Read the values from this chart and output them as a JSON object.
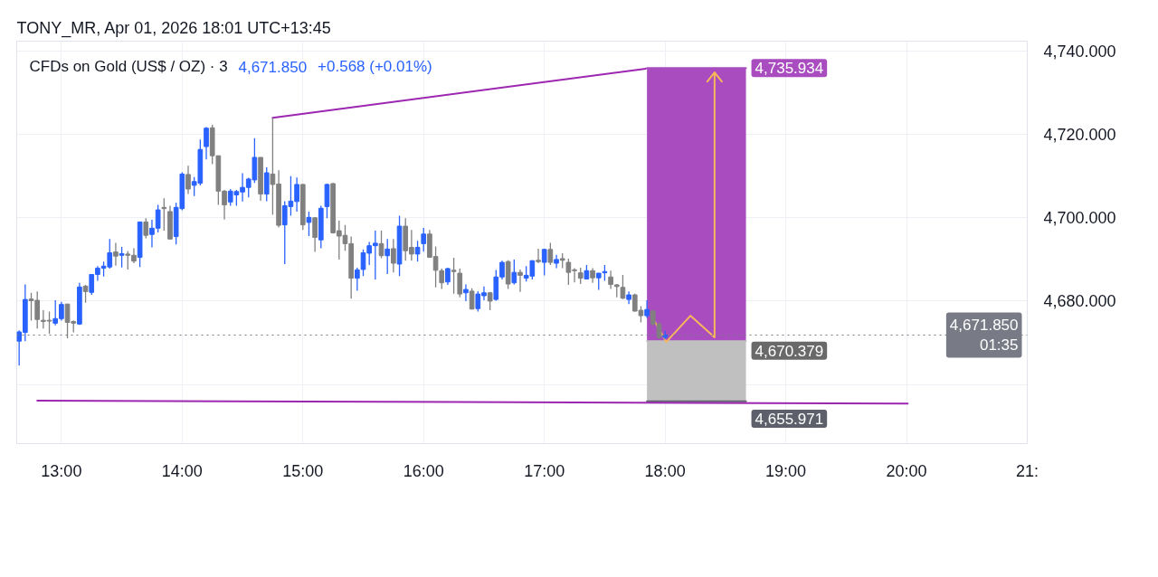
{
  "chart_data": {
    "type": "candlestick",
    "title": "TONY_MR, Apr 01, 2026 18:01 UTC+13:45",
    "subtitle": "CFDs on Gold (US$ / OZ) · 3",
    "x": [
      12.65,
      12.7,
      12.75,
      12.8,
      12.85,
      12.9,
      12.95,
      13,
      13.05,
      13.1,
      13.15,
      13.2,
      13.25,
      13.3,
      13.35,
      13.4,
      13.45,
      13.5,
      13.55,
      13.6,
      13.65,
      13.7,
      13.75,
      13.8,
      13.85,
      13.9,
      13.95,
      14,
      14.05,
      14.1,
      14.15,
      14.2,
      14.25,
      14.3,
      14.35,
      14.4,
      14.45,
      14.5,
      14.55,
      14.6,
      14.65,
      14.7,
      14.75,
      14.8,
      14.85,
      14.9,
      14.95,
      15,
      15.05,
      15.1,
      15.15,
      15.2,
      15.25,
      15.3,
      15.35,
      15.4,
      15.45,
      15.5,
      15.55,
      15.6,
      15.65,
      15.7,
      15.75,
      15.8,
      15.85,
      15.9,
      15.95,
      16,
      16.05,
      16.1,
      16.15,
      16.2,
      16.25,
      16.3,
      16.35,
      16.4,
      16.45,
      16.5,
      16.55,
      16.6,
      16.65,
      16.7,
      16.75,
      16.8,
      16.85,
      16.9,
      16.95,
      17,
      17.05,
      17.1,
      17.15,
      17.2,
      17.25,
      17.3,
      17.35,
      17.4,
      17.45,
      17.5,
      17.55,
      17.6,
      17.65,
      17.7,
      17.75,
      17.8,
      17.85,
      17.9,
      17.95,
      18
    ],
    "ohlc": [
      [
        4670.4,
        4673.0,
        4664.5,
        4672.6
      ],
      [
        4672.5,
        4684.0,
        4670.4,
        4680.4
      ],
      [
        4680.5,
        4682.0,
        4675.3,
        4680.1
      ],
      [
        4680.2,
        4682.3,
        4673.4,
        4675.6
      ],
      [
        4675.4,
        4677.8,
        4673.4,
        4675.1
      ],
      [
        4675.4,
        4677.5,
        4672.2,
        4675.2
      ],
      [
        4674.7,
        4680.2,
        4674.2,
        4675.8
      ],
      [
        4675.8,
        4679.8,
        4675.3,
        4679.2
      ],
      [
        4679.3,
        4679.3,
        4671.1,
        4674.9
      ],
      [
        4675.1,
        4675.4,
        4672.5,
        4674.7
      ],
      [
        4674.5,
        4684.4,
        4674.3,
        4683.4
      ],
      [
        4683.6,
        4683.9,
        4679.6,
        4682.3
      ],
      [
        4682.1,
        4686.5,
        4681.5,
        4686.4
      ],
      [
        4686.4,
        4688.4,
        4684.9,
        4687.9
      ],
      [
        4687.9,
        4689.5,
        4685.9,
        4688.4
      ],
      [
        4688.2,
        4694.9,
        4687.8,
        4691.6
      ],
      [
        4691.8,
        4694.0,
        4688.5,
        4690.8
      ],
      [
        4691.0,
        4693.0,
        4688.1,
        4691.4
      ],
      [
        4691.3,
        4692.0,
        4687.6,
        4691.0
      ],
      [
        4691.0,
        4692.7,
        4689.1,
        4689.6
      ],
      [
        4690.5,
        4699.0,
        4688.2,
        4699.0
      ],
      [
        4699.0,
        4699.9,
        4695.1,
        4695.8
      ],
      [
        4696.0,
        4699.5,
        4692.9,
        4697.5
      ],
      [
        4697.5,
        4703.1,
        4696.5,
        4701.9
      ],
      [
        4702.5,
        4704.7,
        4696.9,
        4702.2
      ],
      [
        4701.5,
        4702.9,
        4694.9,
        4694.9
      ],
      [
        4695.5,
        4703.6,
        4693.6,
        4702.5
      ],
      [
        4702.2,
        4710.9,
        4701.8,
        4710.5
      ],
      [
        4710.4,
        4712.5,
        4705.7,
        4706.9
      ],
      [
        4707.8,
        4709.8,
        4705.2,
        4708.7
      ],
      [
        4708.3,
        4718.8,
        4707.8,
        4716.4
      ],
      [
        4717.1,
        4721.8,
        4714.0,
        4721.5
      ],
      [
        4721.6,
        4722.3,
        4712.9,
        4714.9
      ],
      [
        4714.9,
        4714.9,
        4703.1,
        4706.4
      ],
      [
        4706.4,
        4706.7,
        4699.6,
        4703.1
      ],
      [
        4703.8,
        4706.9,
        4702.9,
        4706.4
      ],
      [
        4705.5,
        4706.7,
        4702.9,
        4706.3
      ],
      [
        4706.2,
        4710.7,
        4703.9,
        4707.3
      ],
      [
        4707.3,
        4709.6,
        4704.9,
        4709.3
      ],
      [
        4709.1,
        4719.1,
        4708.4,
        4714.5
      ],
      [
        4714.5,
        4714.5,
        4704.1,
        4705.7
      ],
      [
        4705.7,
        4712.1,
        4704.0,
        4710.8
      ],
      [
        4710.5,
        4724.0,
        4700.7,
        4708.0
      ],
      [
        4708.1,
        4711.4,
        4697.7,
        4698.2
      ],
      [
        4698.3,
        4704.0,
        4688.9,
        4702.9
      ],
      [
        4702.7,
        4710.0,
        4700.5,
        4704.0
      ],
      [
        4703.9,
        4709.7,
        4701.5,
        4708.0
      ],
      [
        4708.0,
        4708.1,
        4697.1,
        4698.3
      ],
      [
        4698.9,
        4701.5,
        4695.6,
        4700.1
      ],
      [
        4700.0,
        4700.1,
        4691.8,
        4695.3
      ],
      [
        4694.7,
        4702.9,
        4692.7,
        4702.3
      ],
      [
        4702.7,
        4708.2,
        4699.9,
        4708.0
      ],
      [
        4708.2,
        4708.4,
        4696.2,
        4696.4
      ],
      [
        4696.9,
        4699.3,
        4690.0,
        4695.6
      ],
      [
        4695.8,
        4698.3,
        4692.1,
        4693.8
      ],
      [
        4693.8,
        4695.5,
        4680.6,
        4685.5
      ],
      [
        4685.5,
        4688.0,
        4682.5,
        4687.5
      ],
      [
        4687.6,
        4692.4,
        4686.0,
        4691.6
      ],
      [
        4691.5,
        4694.2,
        4688.7,
        4693.3
      ],
      [
        4693.3,
        4696.9,
        4685.2,
        4693.9
      ],
      [
        4693.8,
        4696.9,
        4690.3,
        4690.9
      ],
      [
        4690.9,
        4694.9,
        4686.5,
        4692.5
      ],
      [
        4692.6,
        4694.9,
        4686.9,
        4689.1
      ],
      [
        4688.9,
        4700.5,
        4686.0,
        4698.0
      ],
      [
        4698.0,
        4699.9,
        4689.7,
        4692.1
      ],
      [
        4692.9,
        4697.1,
        4689.7,
        4691.3
      ],
      [
        4691.3,
        4694.5,
        4689.5,
        4692.9
      ],
      [
        4693.8,
        4697.6,
        4691.9,
        4696.1
      ],
      [
        4696.1,
        4697.1,
        4690.4,
        4690.5
      ],
      [
        4690.7,
        4693.1,
        4683.3,
        4687.4
      ],
      [
        4687.3,
        4687.8,
        4682.9,
        4684.4
      ],
      [
        4684.6,
        4688.0,
        4683.9,
        4687.8
      ],
      [
        4687.4,
        4690.4,
        4681.8,
        4687.1
      ],
      [
        4686.7,
        4687.8,
        4680.9,
        4681.7
      ],
      [
        4682.0,
        4684.0,
        4680.0,
        4682.8
      ],
      [
        4682.4,
        4683.1,
        4678.0,
        4678.1
      ],
      [
        4678.2,
        4682.4,
        4677.5,
        4681.7
      ],
      [
        4681.3,
        4683.5,
        4680.2,
        4682.0
      ],
      [
        4682.0,
        4682.2,
        4677.8,
        4680.0
      ],
      [
        4680.4,
        4687.5,
        4680.1,
        4685.8
      ],
      [
        4685.8,
        4689.7,
        4685.2,
        4689.3
      ],
      [
        4689.5,
        4689.8,
        4682.9,
        4684.1
      ],
      [
        4684.4,
        4690.0,
        4684.0,
        4686.9
      ],
      [
        4686.9,
        4687.6,
        4682.2,
        4686.2
      ],
      [
        4685.5,
        4688.4,
        4684.7,
        4686.2
      ],
      [
        4686.0,
        4689.8,
        4685.2,
        4689.7
      ],
      [
        4689.8,
        4692.6,
        4689.1,
        4689.5
      ],
      [
        4689.3,
        4692.6,
        4686.2,
        4692.4
      ],
      [
        4692.4,
        4694.0,
        4688.7,
        4689.3
      ],
      [
        4689.1,
        4691.1,
        4687.9,
        4690.0
      ],
      [
        4690.2,
        4691.5,
        4687.9,
        4689.8
      ],
      [
        4689.3,
        4690.2,
        4683.9,
        4686.9
      ],
      [
        4687.5,
        4687.9,
        4684.5,
        4687.3
      ],
      [
        4686.8,
        4688.0,
        4684.1,
        4685.5
      ],
      [
        4685.3,
        4688.7,
        4685.2,
        4687.3
      ],
      [
        4687.3,
        4687.9,
        4684.4,
        4685.6
      ],
      [
        4685.6,
        4686.8,
        4682.7,
        4686.7
      ],
      [
        4686.8,
        4688.7,
        4684.9,
        4687.1
      ],
      [
        4685.8,
        4687.3,
        4682.9,
        4684.0
      ],
      [
        4683.9,
        4684.1,
        4680.9,
        4683.5
      ],
      [
        4683.3,
        4686.3,
        4680.5,
        4680.7
      ],
      [
        4680.4,
        4682.3,
        4679.3,
        4681.5
      ],
      [
        4681.5,
        4681.8,
        4677.5,
        4677.6
      ],
      [
        4677.8,
        4678.8,
        4674.9,
        4676.5
      ],
      [
        4676.5,
        4680.2,
        4676.0,
        4678.0
      ],
      [
        4677.6,
        4678.0,
        4674.0,
        4674.5
      ],
      [
        4674.5,
        4675.0,
        4671.0,
        4671.3
      ],
      [
        4671.3,
        4672.9,
        4670.8,
        4671.85
      ]
    ],
    "colors": [
      "#2962ff",
      "#2962ff",
      "#808080",
      "#808080",
      "#808080",
      "#808080",
      "#2962ff",
      "#2962ff",
      "#808080",
      "#808080",
      "#2962ff",
      "#808080",
      "#2962ff",
      "#2962ff",
      "#2962ff",
      "#2962ff",
      "#808080",
      "#2962ff",
      "#808080",
      "#808080",
      "#2962ff",
      "#808080",
      "#2962ff",
      "#2962ff",
      "#808080",
      "#808080",
      "#2962ff",
      "#2962ff",
      "#808080",
      "#2962ff",
      "#2962ff",
      "#2962ff",
      "#808080",
      "#808080",
      "#808080",
      "#2962ff",
      "#2962ff",
      "#2962ff",
      "#2962ff",
      "#2962ff",
      "#808080",
      "#2962ff",
      "#808080",
      "#808080",
      "#2962ff",
      "#2962ff",
      "#2962ff",
      "#808080",
      "#2962ff",
      "#808080",
      "#2962ff",
      "#2962ff",
      "#808080",
      "#808080",
      "#808080",
      "#808080",
      "#2962ff",
      "#2962ff",
      "#2962ff",
      "#2962ff",
      "#808080",
      "#2962ff",
      "#808080",
      "#2962ff",
      "#808080",
      "#808080",
      "#2962ff",
      "#2962ff",
      "#808080",
      "#808080",
      "#808080",
      "#2962ff",
      "#808080",
      "#808080",
      "#2962ff",
      "#808080",
      "#2962ff",
      "#2962ff",
      "#808080",
      "#2962ff",
      "#2962ff",
      "#808080",
      "#2962ff",
      "#808080",
      "#2962ff",
      "#2962ff",
      "#808080",
      "#2962ff",
      "#808080",
      "#2962ff",
      "#808080",
      "#808080",
      "#808080",
      "#808080",
      "#2962ff",
      "#808080",
      "#2962ff",
      "#2962ff",
      "#808080",
      "#808080",
      "#808080",
      "#2962ff",
      "#808080",
      "#808080",
      "#2962ff",
      "#808080",
      "#808080",
      "#2962ff"
    ],
    "series": [
      {
        "type": "line",
        "x": [
          17.85,
          18.67
        ],
        "values": [
          4735.934,
          4735.934
        ],
        "upper": [
          4735.934,
          4735.934
        ],
        "lower": [
          4670.379,
          4670.379
        ],
        "value_labels": [
          null,
          "4,735.934"
        ],
        "color": "#a94cbf",
        "line_style": "solid"
      },
      {
        "type": "line",
        "x": [
          17.85,
          18.67
        ],
        "values": [
          4670.379,
          4670.379
        ],
        "upper": [
          4670.379,
          4670.379
        ],
        "lower": [
          4655.971,
          4655.971
        ],
        "value_labels": [
          null,
          "4,670.379"
        ],
        "color": "#c0c0c0",
        "line_style": "solid"
      },
      {
        "type": "line",
        "x": [
          17.85,
          18.67
        ],
        "values": [
          4655.971,
          4655.971
        ],
        "value_labels": [
          null,
          "4,655.971"
        ],
        "color": "#5d606b",
        "line_style": "solid"
      },
      {
        "type": "line",
        "x": [
          14.75,
          17.84
        ],
        "values": [
          4724.0,
          4735.8
        ],
        "color": "#9c27b0",
        "line_style": "solid"
      },
      {
        "type": "line",
        "x": [
          12.8,
          20.01
        ],
        "values": [
          4656.1,
          4655.4
        ],
        "color": "#9c27b0",
        "line_style": "solid"
      },
      {
        "type": "line",
        "x": [
          17.91,
          18.01,
          18.21,
          18.41,
          18.41,
          18.35,
          18.41,
          18.47
        ],
        "values": [
          4675.3,
          4670.2,
          4676.5,
          4671.3,
          4734.9,
          4732.7,
          4734.9,
          4732.7
        ],
        "color": "#f7b75a",
        "line_style": "solid"
      }
    ],
    "ref_lines": [
      {
        "axis": "y",
        "value": 4671.85,
        "label": "4,671.850\n01:35",
        "color": "#787b86",
        "line_style": "dotted"
      }
    ],
    "annotations": [
      "4,671.850",
      "+0.568 (+0.01%)"
    ],
    "xlim": [
      12.63,
      21.0
    ],
    "xticks": [
      {
        "value": 13,
        "label": "13:00"
      },
      {
        "value": 14,
        "label": "14:00"
      },
      {
        "value": 15,
        "label": "15:00"
      },
      {
        "value": 16,
        "label": "16:00"
      },
      {
        "value": 17,
        "label": "17:00"
      },
      {
        "value": 18,
        "label": "18:00"
      },
      {
        "value": 19,
        "label": "19:00"
      },
      {
        "value": 20,
        "label": "20:00"
      },
      {
        "value": 21,
        "label": "21:"
      }
    ],
    "ylim": [
      4645.8,
      4742.4
    ],
    "yticks": [
      {
        "value": 4660,
        "label": null
      },
      {
        "value": 4680,
        "label": "4,680.000"
      },
      {
        "value": 4700,
        "label": "4,700.000"
      },
      {
        "value": 4720,
        "label": "4,720.000"
      },
      {
        "value": 4740,
        "label": "4,740.000"
      }
    ],
    "grid": true
  }
}
